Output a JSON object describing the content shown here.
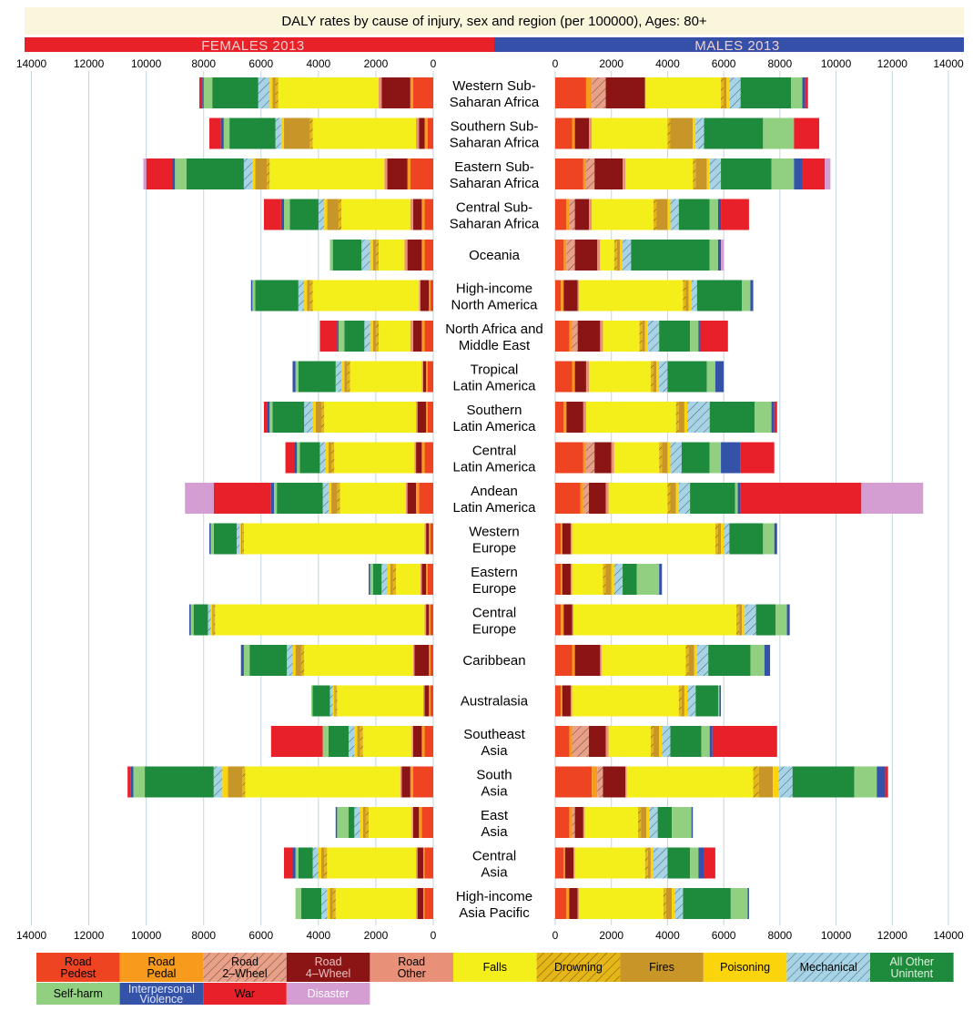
{
  "chart_data": {
    "type": "bar",
    "title": "DALY rates by cause of injury, sex and region (per 100000), Ages: 80+",
    "left_panel_label": "FEMALES 2013",
    "right_panel_label": "MALES 2013",
    "xlim": [
      0,
      14000
    ],
    "x_ticks": [
      "14000",
      "12000",
      "10000",
      "8000",
      "6000",
      "4000",
      "2000",
      "0"
    ],
    "x_ticks_right": [
      "0",
      "2000",
      "4000",
      "6000",
      "8000",
      "10000",
      "12000",
      "14000"
    ],
    "grid": true,
    "colors": {
      "Road Pedest": "#ee4422",
      "Road Pedal": "#f89a1c",
      "Road 2-Wheel": "#e8a088",
      "Road 4-Wheel": "#8b1414",
      "Road Other": "#e89078",
      "Falls": "#f4ee1a",
      "Drowning": "#e4b618",
      "Fires": "#c89628",
      "Poisoning": "#fcd40c",
      "Mechanical": "#a6d4e6",
      "All Other Unintent": "#1e8a3c",
      "Self-harm": "#90d080",
      "Interpersonal Violence": "#3452a8",
      "War": "#e8202a",
      "Disaster": "#d49ed2"
    },
    "legend": [
      {
        "name": "Road Pedest",
        "line1": "Road",
        "line2": "Pedest",
        "text_color": "#000000"
      },
      {
        "name": "Road Pedal",
        "line1": "Road",
        "line2": "Pedal",
        "text_color": "#000000"
      },
      {
        "name": "Road 2-Wheel",
        "line1": "Road",
        "line2": "2–Wheel",
        "text_color": "#000000"
      },
      {
        "name": "Road 4-Wheel",
        "line1": "Road",
        "line2": "4–Wheel",
        "text_color": "#e8c0c0"
      },
      {
        "name": "Road Other",
        "line1": "Road",
        "line2": "Other",
        "text_color": "#000000"
      },
      {
        "name": "Falls",
        "line1": "Falls",
        "line2": "",
        "text_color": "#000000"
      },
      {
        "name": "Drowning",
        "line1": "Drowning",
        "line2": "",
        "text_color": "#000000"
      },
      {
        "name": "Fires",
        "line1": "Fires",
        "line2": "",
        "text_color": "#000000"
      },
      {
        "name": "Poisoning",
        "line1": "Poisoning",
        "line2": "",
        "text_color": "#000000"
      },
      {
        "name": "Mechanical",
        "line1": "Mechanical",
        "line2": "",
        "text_color": "#000000"
      },
      {
        "name": "All Other Unintent",
        "line1": "All Other",
        "line2": "Unintent",
        "text_color": "#e0f0e0"
      },
      {
        "name": "Self-harm",
        "line1": "Self-harm",
        "line2": "",
        "text_color": "#000000"
      },
      {
        "name": "Interpersonal Violence",
        "line1": "Interpersonal",
        "line2": "Violence",
        "text_color": "#e0e8ff"
      },
      {
        "name": "War",
        "line1": "War",
        "line2": "",
        "text_color": "#000000"
      },
      {
        "name": "Disaster",
        "line1": "Disaster",
        "line2": "",
        "text_color": "#ffffff"
      }
    ],
    "causes": [
      "Road Pedest",
      "Road Pedal",
      "Road 2-Wheel",
      "Road 4-Wheel",
      "Road Other",
      "Falls",
      "Drowning",
      "Fires",
      "Poisoning",
      "Mechanical",
      "All Other Unintent",
      "Self-harm",
      "Interpersonal Violence",
      "War",
      "Disaster"
    ],
    "regions": [
      {
        "line1": "Western Sub-",
        "line2": "Saharan Africa",
        "female": [
          700,
          100,
          0,
          1000,
          100,
          3500,
          100,
          100,
          100,
          400,
          1600,
          300,
          50,
          100,
          0
        ],
        "male": [
          1100,
          200,
          500,
          1400,
          0,
          2700,
          100,
          100,
          100,
          400,
          1800,
          400,
          100,
          100,
          0
        ]
      },
      {
        "line1": "Southern Sub-",
        "line2": "Saharan Africa",
        "female": [
          200,
          100,
          0,
          200,
          100,
          3600,
          100,
          900,
          100,
          200,
          1600,
          200,
          100,
          400,
          0
        ],
        "male": [
          600,
          100,
          0,
          500,
          100,
          2700,
          100,
          800,
          100,
          300,
          2100,
          1100,
          0,
          900,
          0
        ]
      },
      {
        "line1": "Eastern Sub-",
        "line2": "Saharan Africa",
        "female": [
          800,
          100,
          0,
          700,
          100,
          4000,
          100,
          400,
          100,
          300,
          2000,
          400,
          100,
          900,
          100
        ],
        "male": [
          1000,
          100,
          300,
          1000,
          100,
          2400,
          100,
          400,
          100,
          400,
          1800,
          800,
          300,
          800,
          200
        ]
      },
      {
        "line1": "Central Sub-",
        "line2": "Saharan Africa",
        "female": [
          300,
          100,
          0,
          300,
          100,
          2400,
          100,
          400,
          100,
          200,
          1000,
          200,
          100,
          600,
          0
        ],
        "male": [
          400,
          100,
          200,
          500,
          100,
          2200,
          100,
          400,
          100,
          300,
          1100,
          300,
          100,
          1000,
          0
        ]
      },
      {
        "line1": "Oceania",
        "line2": "",
        "female": [
          300,
          100,
          0,
          500,
          100,
          900,
          100,
          100,
          100,
          300,
          1000,
          100,
          0,
          0,
          0
        ],
        "male": [
          300,
          100,
          300,
          800,
          100,
          500,
          100,
          100,
          100,
          300,
          2800,
          300,
          100,
          0,
          100
        ]
      },
      {
        "line1": "High-income",
        "line2": "North America",
        "female": [
          100,
          50,
          0,
          300,
          50,
          3700,
          100,
          100,
          100,
          200,
          1500,
          100,
          50,
          0,
          0
        ],
        "male": [
          200,
          100,
          0,
          500,
          50,
          3700,
          100,
          100,
          100,
          200,
          1600,
          300,
          100,
          0,
          0
        ]
      },
      {
        "line1": "North Africa and",
        "line2": "Middle East",
        "female": [
          300,
          100,
          0,
          300,
          100,
          1100,
          100,
          100,
          100,
          200,
          700,
          200,
          50,
          600,
          0
        ],
        "male": [
          500,
          100,
          200,
          800,
          100,
          1300,
          100,
          100,
          100,
          400,
          1100,
          300,
          50,
          1000,
          0
        ]
      },
      {
        "line1": "Tropical",
        "line2": "Latin America",
        "female": [
          200,
          50,
          0,
          100,
          50,
          2500,
          100,
          100,
          100,
          200,
          1300,
          100,
          100,
          0,
          0
        ],
        "male": [
          600,
          100,
          0,
          400,
          100,
          2200,
          100,
          100,
          100,
          300,
          1400,
          300,
          300,
          0,
          0
        ]
      },
      {
        "line1": "Southern",
        "line2": "Latin America",
        "female": [
          200,
          50,
          0,
          300,
          50,
          3200,
          100,
          200,
          100,
          300,
          1100,
          100,
          100,
          100,
          0
        ],
        "male": [
          300,
          100,
          0,
          600,
          100,
          3200,
          100,
          200,
          100,
          800,
          1600,
          600,
          100,
          100,
          0
        ]
      },
      {
        "line1": "Central",
        "line2": "Latin America",
        "female": [
          300,
          100,
          0,
          200,
          50,
          2800,
          100,
          100,
          100,
          200,
          700,
          100,
          100,
          300,
          0
        ],
        "male": [
          1000,
          100,
          300,
          600,
          100,
          1600,
          100,
          200,
          100,
          400,
          1000,
          400,
          700,
          1200,
          0
        ]
      },
      {
        "line1": "Andean",
        "line2": "Latin America",
        "female": [
          500,
          100,
          0,
          300,
          50,
          2300,
          100,
          200,
          100,
          200,
          1600,
          100,
          100,
          2000,
          1000
        ],
        "male": [
          900,
          100,
          200,
          600,
          100,
          2100,
          100,
          200,
          100,
          400,
          1600,
          100,
          100,
          4300,
          2200
        ]
      },
      {
        "line1": "Western",
        "line2": "Europe",
        "female": [
          100,
          50,
          0,
          100,
          50,
          6300,
          50,
          50,
          50,
          100,
          800,
          100,
          50,
          0,
          0
        ],
        "male": [
          200,
          50,
          0,
          300,
          50,
          5100,
          100,
          100,
          100,
          200,
          1200,
          400,
          100,
          0,
          0
        ]
      },
      {
        "line1": "Eastern",
        "line2": "Europe",
        "female": [
          200,
          50,
          0,
          150,
          50,
          850,
          100,
          100,
          100,
          200,
          300,
          100,
          50,
          0,
          0
        ],
        "male": [
          200,
          50,
          0,
          300,
          50,
          1100,
          100,
          200,
          100,
          300,
          500,
          800,
          100,
          0,
          0
        ]
      },
      {
        "line1": "Central",
        "line2": "Europe",
        "female": [
          100,
          50,
          0,
          100,
          50,
          7300,
          50,
          50,
          50,
          100,
          500,
          100,
          50,
          0,
          0
        ],
        "male": [
          200,
          100,
          0,
          300,
          50,
          5800,
          100,
          100,
          100,
          400,
          700,
          400,
          100,
          0,
          0
        ]
      },
      {
        "line1": "Caribbean",
        "line2": "",
        "female": [
          100,
          50,
          0,
          500,
          50,
          3800,
          100,
          200,
          100,
          200,
          1300,
          200,
          100,
          0,
          0
        ],
        "male": [
          600,
          100,
          0,
          900,
          50,
          3000,
          100,
          200,
          100,
          400,
          1500,
          500,
          200,
          0,
          0
        ]
      },
      {
        "line1": "Australasia",
        "line2": "",
        "female": [
          100,
          50,
          0,
          150,
          50,
          3000,
          50,
          50,
          50,
          100,
          600,
          50,
          0,
          0,
          0
        ],
        "male": [
          200,
          50,
          0,
          300,
          50,
          3800,
          100,
          100,
          100,
          300,
          800,
          50,
          50,
          0,
          0
        ]
      },
      {
        "line1": "Southeast",
        "line2": "Asia",
        "female": [
          300,
          100,
          0,
          300,
          50,
          1700,
          100,
          100,
          100,
          200,
          700,
          200,
          0,
          1800,
          0
        ],
        "male": [
          500,
          100,
          600,
          600,
          100,
          1500,
          100,
          200,
          100,
          300,
          1100,
          300,
          100,
          2300,
          0
        ]
      },
      {
        "line1": "South",
        "line2": "Asia",
        "female": [
          700,
          100,
          0,
          300,
          50,
          5400,
          100,
          500,
          200,
          300,
          2400,
          400,
          100,
          100,
          0
        ],
        "male": [
          1300,
          200,
          200,
          800,
          50,
          4500,
          200,
          500,
          200,
          500,
          2200,
          800,
          300,
          100,
          0
        ]
      },
      {
        "line1": "East",
        "line2": "Asia",
        "female": [
          400,
          100,
          0,
          200,
          50,
          1500,
          100,
          100,
          100,
          200,
          200,
          400,
          50,
          0,
          0
        ],
        "male": [
          500,
          100,
          100,
          300,
          50,
          1900,
          100,
          200,
          100,
          300,
          500,
          700,
          50,
          0,
          0
        ]
      },
      {
        "line1": "Central",
        "line2": "Asia",
        "female": [
          300,
          50,
          0,
          200,
          50,
          3100,
          100,
          100,
          100,
          200,
          500,
          100,
          100,
          300,
          0
        ],
        "male": [
          300,
          50,
          0,
          300,
          50,
          2500,
          100,
          100,
          100,
          500,
          800,
          300,
          200,
          400,
          0
        ]
      },
      {
        "line1": "High-income",
        "line2": "Asia Pacific",
        "female": [
          300,
          50,
          0,
          200,
          50,
          2800,
          100,
          100,
          100,
          200,
          700,
          200,
          0,
          0,
          0
        ],
        "male": [
          400,
          100,
          0,
          300,
          50,
          3000,
          100,
          200,
          100,
          300,
          1700,
          600,
          50,
          0,
          0
        ]
      }
    ]
  }
}
